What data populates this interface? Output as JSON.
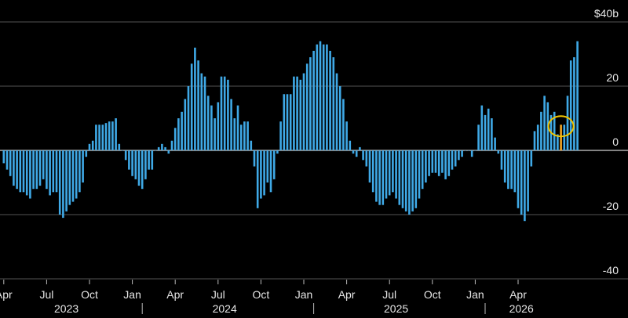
{
  "chart_data": {
    "type": "bar",
    "title": "",
    "xlabel": "",
    "ylabel": "",
    "y_unit_label": "$40b",
    "ylim": [
      -40,
      40
    ],
    "y_ticks": [
      {
        "value": 40,
        "label": "$40b"
      },
      {
        "value": 20,
        "label": "20"
      },
      {
        "value": 0,
        "label": "0"
      },
      {
        "value": -20,
        "label": "-20"
      },
      {
        "value": -40,
        "label": "-40"
      }
    ],
    "x_ticks": [
      {
        "label": "Apr",
        "bar_index": 0
      },
      {
        "label": "Jul",
        "bar_index": 13
      },
      {
        "label": "Oct",
        "bar_index": 26
      },
      {
        "label": "Jan",
        "bar_index": 39
      },
      {
        "label": "Apr",
        "bar_index": 52
      },
      {
        "label": "Jul",
        "bar_index": 65
      },
      {
        "label": "Oct",
        "bar_index": 78
      },
      {
        "label": "Jan",
        "bar_index": 91
      },
      {
        "label": "Apr",
        "bar_index": 104
      },
      {
        "label": "Jul",
        "bar_index": 117
      },
      {
        "label": "Oct",
        "bar_index": 130
      },
      {
        "label": "Jan",
        "bar_index": 143
      },
      {
        "label": "Apr",
        "bar_index": 156
      }
    ],
    "years": [
      {
        "label": "2023",
        "bar_index": 19
      },
      {
        "label": "2024",
        "bar_index": 67
      },
      {
        "label": "2025",
        "bar_index": 119
      },
      {
        "label": "2026",
        "bar_index": 157
      }
    ],
    "year_separators": [
      42,
      94,
      146
    ],
    "grid": true,
    "colors": {
      "bars": "#3fa9e6",
      "highlight": "#f5a623",
      "annotation_circle": "#f2c500",
      "grid": "#555555",
      "zero_line": "#d0d0d0"
    },
    "highlight_index": 169,
    "values": [
      -4,
      -6,
      -8,
      -11,
      -12,
      -13,
      -13,
      -14,
      -15,
      -12,
      -12,
      -11,
      -9,
      -12,
      -14,
      -13,
      -13,
      -20,
      -21,
      -19,
      -17,
      -16,
      -15,
      -13,
      -10,
      -2,
      2,
      3,
      8,
      8,
      8,
      8.5,
      9,
      9,
      10,
      2,
      0,
      -3,
      -6,
      -8,
      -9,
      -11,
      -12,
      -9,
      -6,
      -6,
      0,
      1,
      2,
      1,
      -1,
      3,
      7,
      10,
      12,
      16,
      20,
      27,
      32,
      28,
      24,
      23,
      17,
      14,
      10,
      15,
      23,
      23,
      22,
      16,
      10,
      14,
      8,
      9,
      9,
      3,
      -5,
      -18,
      -15,
      -14,
      -10,
      -13,
      -9,
      -1,
      9,
      17.5,
      17.5,
      17.5,
      23,
      23,
      22,
      24,
      27,
      29,
      31,
      33,
      34,
      33,
      33,
      31,
      29,
      24,
      20,
      16,
      9,
      3,
      -1,
      -2,
      1,
      -3,
      -5,
      -10,
      -13,
      -16,
      -17,
      -17,
      -15,
      -14,
      -13,
      -15,
      -17,
      -18,
      -19,
      -20,
      -19,
      -18,
      -15,
      -12,
      -10,
      -8,
      -7,
      -7,
      -8,
      -7,
      -9,
      -8,
      -6,
      -5,
      -3,
      -2,
      0,
      0,
      -2,
      0,
      8,
      14,
      11,
      13,
      10,
      4,
      -1,
      -6,
      -10,
      -12,
      -12,
      -13,
      -18,
      -20,
      -22,
      -19,
      -5,
      6,
      8,
      12,
      17,
      15,
      11,
      12,
      5,
      8,
      8,
      17,
      28,
      29,
      34
    ]
  }
}
